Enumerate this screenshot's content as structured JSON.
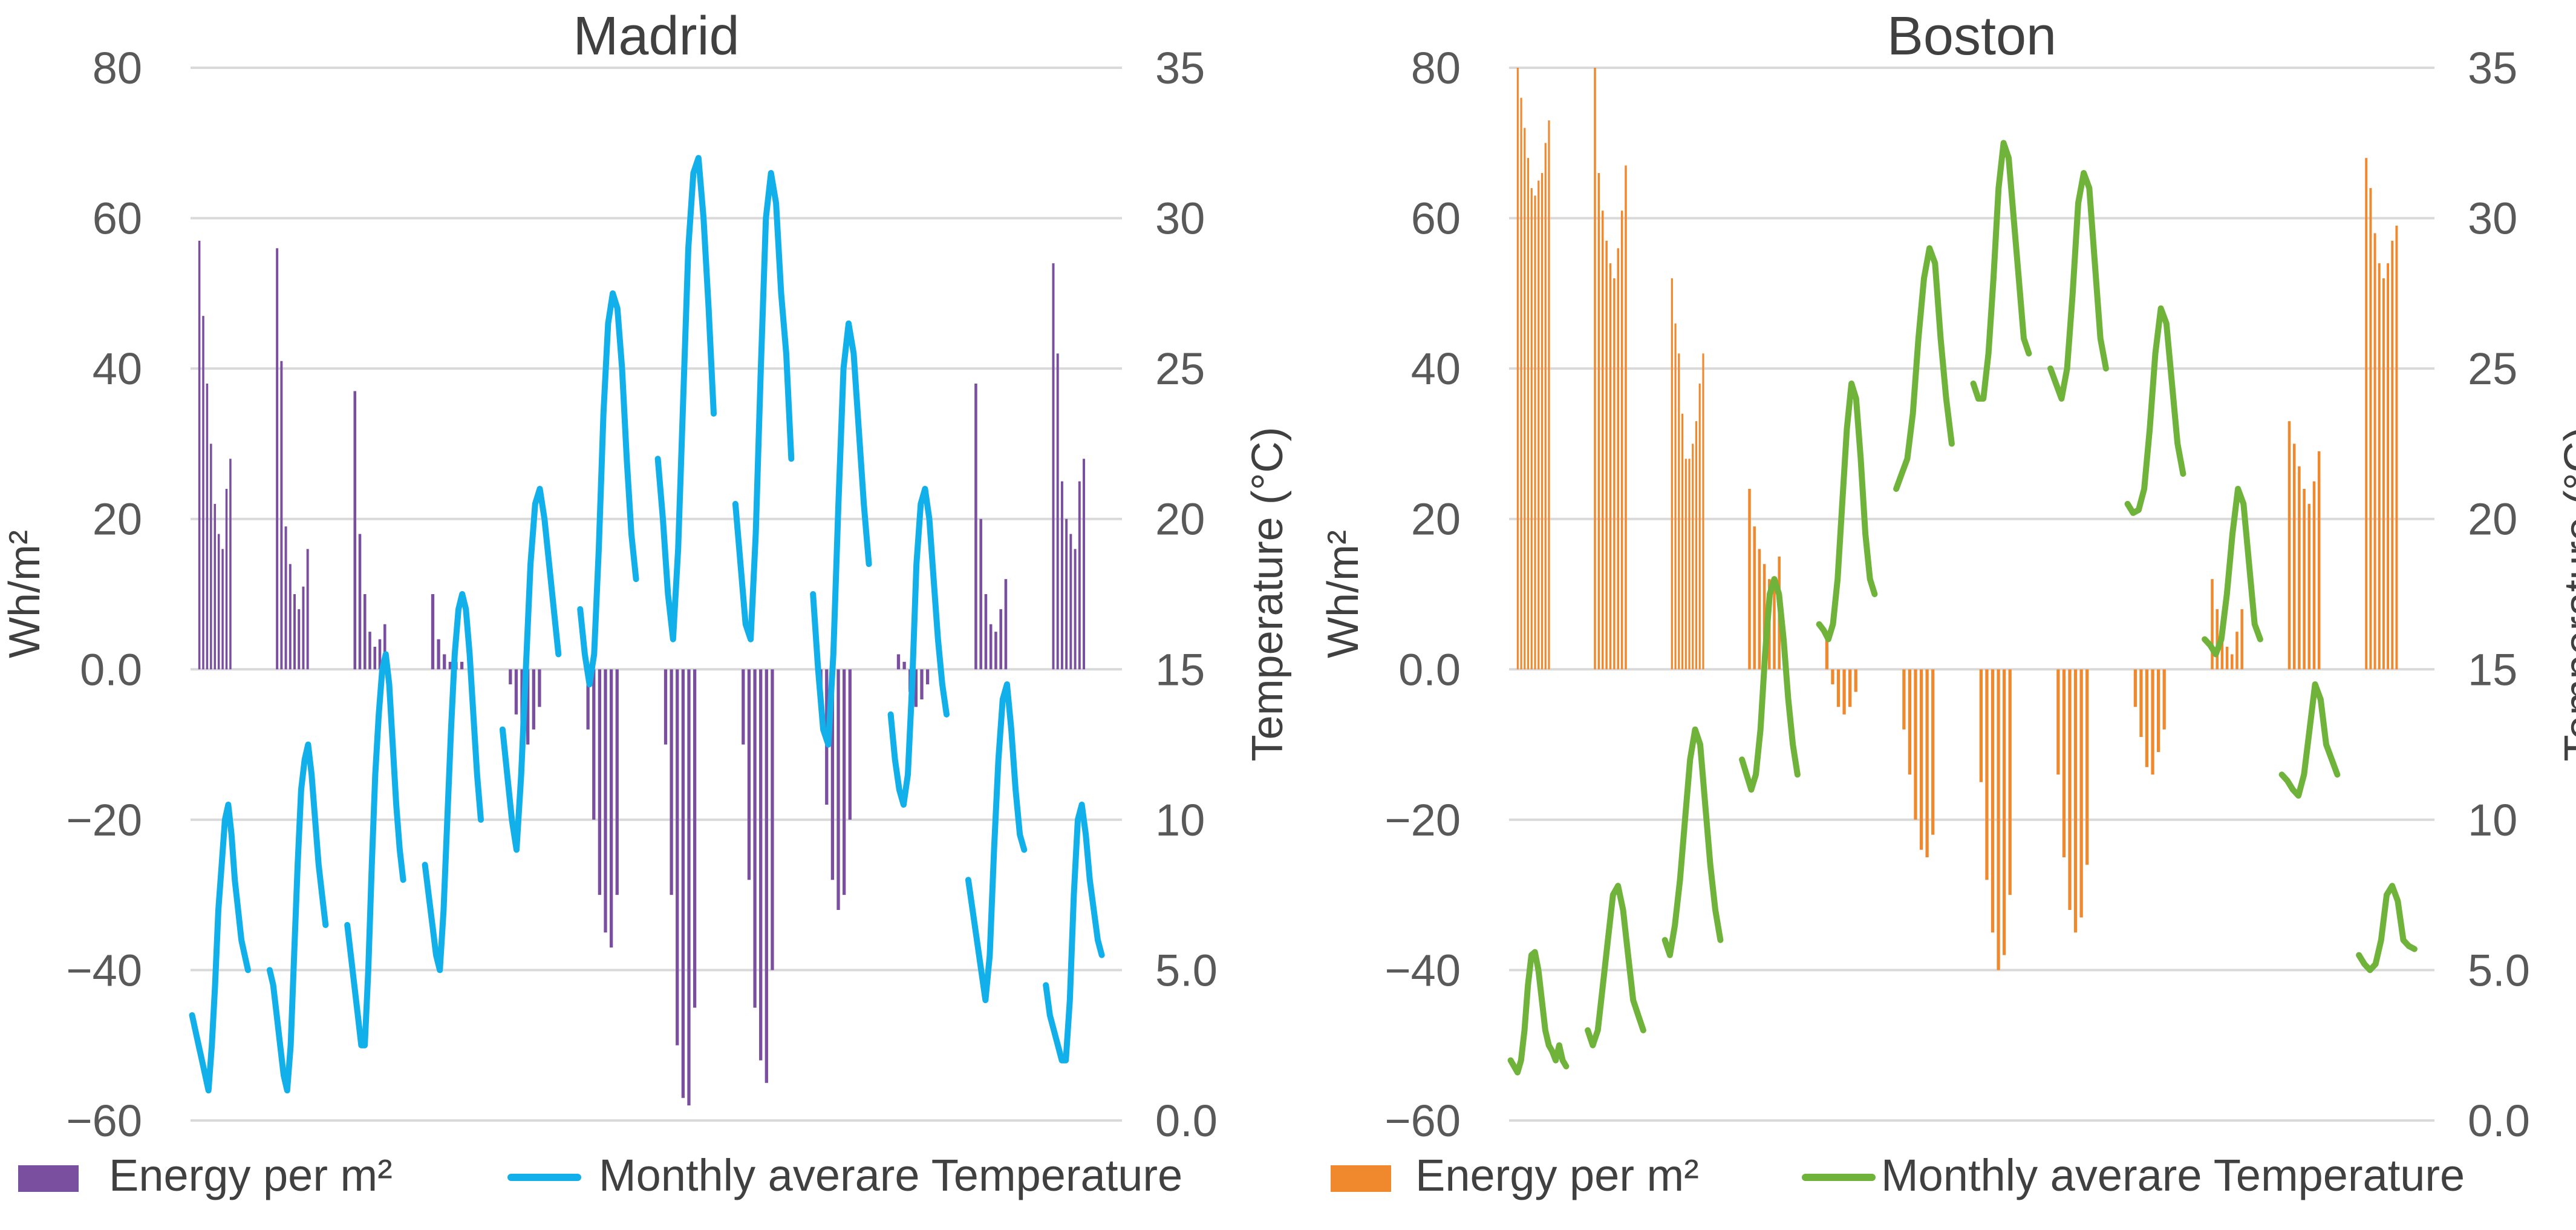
{
  "chart_data": [
    {
      "type": "bar+line",
      "title": "Madrid",
      "ylabel_left": "Wh/m²",
      "ylabel_right": "Temperature (°C)",
      "ylim_left": [
        -60,
        80
      ],
      "ylim_right": [
        0,
        35
      ],
      "yticks_left": [
        "80",
        "60",
        "40",
        "20",
        "0.0",
        "−20",
        "−40",
        "−60"
      ],
      "yticks_right": [
        "35",
        "30",
        "25",
        "20",
        "15",
        "10",
        "5.0",
        "0.0"
      ],
      "grid": true,
      "legend_position": "bottom",
      "bar_color": "#7b4fa0",
      "line_color": "#12b0ea",
      "series": [
        {
          "name": "Energy per m²",
          "type": "bar",
          "months": [
            [
              57,
              47,
              38,
              30,
              22,
              18,
              16,
              24,
              28
            ],
            [
              56,
              41,
              19,
              14,
              10,
              8,
              11,
              16
            ],
            [
              37,
              18,
              10,
              5,
              3,
              4,
              6
            ],
            [
              10,
              4,
              2,
              1,
              1,
              1
            ],
            [
              -2,
              -6,
              -9,
              -10,
              -8,
              -5
            ],
            [
              -8,
              -20,
              -30,
              -35,
              -37,
              -30
            ],
            [
              -10,
              -30,
              -50,
              -57,
              -58,
              -45
            ],
            [
              -10,
              -28,
              -45,
              -52,
              -55,
              -40
            ],
            [
              -6,
              -18,
              -28,
              -32,
              -30,
              -20
            ],
            [
              2,
              1,
              -3,
              -5,
              -4,
              -2
            ],
            [
              38,
              20,
              10,
              6,
              5,
              8,
              12
            ],
            [
              54,
              42,
              25,
              20,
              18,
              16,
              25,
              28
            ]
          ]
        },
        {
          "name": "Monthly averare Temperature",
          "type": "line",
          "months": [
            [
              3.5,
              3.0,
              2.5,
              2.0,
              1.5,
              1.0,
              2.5,
              4.5,
              7.0,
              8.5,
              10.0,
              10.5,
              9.5,
              8.0,
              7.0,
              6.0,
              5.5,
              5.0
            ],
            [
              5.0,
              4.5,
              3.5,
              2.5,
              1.5,
              1.0,
              2.5,
              5.5,
              8.5,
              11.0,
              12.0,
              12.5,
              11.5,
              10.0,
              8.5,
              7.5,
              6.5
            ],
            [
              6.5,
              5.5,
              4.5,
              3.5,
              2.5,
              2.5,
              5.0,
              8.5,
              11.5,
              13.5,
              15.0,
              15.5,
              14.5,
              12.5,
              10.5,
              9.0,
              8.0
            ],
            [
              8.5,
              7.5,
              6.5,
              5.5,
              5.0,
              7.0,
              10.0,
              13.0,
              15.5,
              17.0,
              17.5,
              17.0,
              15.5,
              13.5,
              11.5,
              10.0
            ],
            [
              13.0,
              11.5,
              10.0,
              9.0,
              11.5,
              15.0,
              18.5,
              20.5,
              21.0,
              20.0,
              18.5,
              17.0,
              15.5
            ],
            [
              17.0,
              15.5,
              14.5,
              15.5,
              19.0,
              23.5,
              26.5,
              27.5,
              27.0,
              25.0,
              22.0,
              19.5,
              18.0
            ],
            [
              22.0,
              20.0,
              17.5,
              16.0,
              19.0,
              24.0,
              29.0,
              31.5,
              32.0,
              30.0,
              27.0,
              23.5
            ],
            [
              20.5,
              18.5,
              16.5,
              16.0,
              19.5,
              25.0,
              30.0,
              31.5,
              30.5,
              27.5,
              25.5,
              22.0
            ],
            [
              17.5,
              15.0,
              13.0,
              12.5,
              15.5,
              20.5,
              25.0,
              26.5,
              25.5,
              23.0,
              20.5,
              18.5
            ],
            [
              13.5,
              12.0,
              11.0,
              10.5,
              11.5,
              14.5,
              18.5,
              20.5,
              21.0,
              20.0,
              18.0,
              16.0,
              14.5,
              13.5
            ],
            [
              8.0,
              7.0,
              6.0,
              5.0,
              4.0,
              5.5,
              9.0,
              12.0,
              14.0,
              14.5,
              13.0,
              11.0,
              9.5,
              9.0
            ],
            [
              4.5,
              3.5,
              3.0,
              2.5,
              2.0,
              2.0,
              4.0,
              7.5,
              10.0,
              10.5,
              9.5,
              8.0,
              7.0,
              6.0,
              5.5
            ]
          ]
        }
      ]
    },
    {
      "type": "bar+line",
      "title": "Boston",
      "ylabel_left": "Wh/m²",
      "ylabel_right": "Temperature (°C)",
      "ylim_left": [
        -60,
        80
      ],
      "ylim_right": [
        0,
        35
      ],
      "yticks_left": [
        "80",
        "60",
        "40",
        "20",
        "0.0",
        "−20",
        "−40",
        "−60"
      ],
      "yticks_right": [
        "35",
        "30",
        "25",
        "20",
        "15",
        "10",
        "5.0",
        "0.0"
      ],
      "grid": true,
      "legend_position": "bottom",
      "bar_color": "#f0892d",
      "line_color": "#6fb33a",
      "series": [
        {
          "name": "Energy per m²",
          "type": "bar",
          "months": [
            [
              80,
              76,
              72,
              68,
              64,
              63,
              65,
              66,
              70,
              73
            ],
            [
              80,
              66,
              61,
              57,
              54,
              52,
              56,
              61,
              67
            ],
            [
              52,
              46,
              42,
              34,
              28,
              28,
              30,
              33,
              38,
              42
            ],
            [
              24,
              19,
              16,
              14,
              12,
              11,
              15
            ],
            [
              4,
              -2,
              -5,
              -6,
              -5,
              -3
            ],
            [
              -8,
              -14,
              -20,
              -24,
              -25,
              -22
            ],
            [
              -15,
              -28,
              -35,
              -40,
              -38,
              -30
            ],
            [
              -14,
              -25,
              -32,
              -35,
              -33,
              -26
            ],
            [
              -5,
              -9,
              -13,
              -14,
              -11,
              -8
            ],
            [
              12,
              8,
              4,
              3,
              2,
              5,
              8
            ],
            [
              33,
              30,
              27,
              24,
              22,
              25,
              29
            ],
            [
              68,
              64,
              58,
              54,
              52,
              54,
              57,
              59
            ]
          ]
        },
        {
          "name": "Monthly averare Temperature",
          "type": "line",
          "months": [
            [
              2.0,
              1.8,
              1.6,
              2.0,
              3.0,
              4.5,
              5.5,
              5.6,
              5.0,
              4.0,
              3.0,
              2.5,
              2.3,
              2.0,
              2.5,
              2.0,
              1.8
            ],
            [
              3.0,
              2.5,
              3.0,
              4.5,
              6.0,
              7.5,
              7.8,
              7.0,
              5.5,
              4.0,
              3.5,
              3.0
            ],
            [
              6.0,
              5.5,
              6.5,
              8.0,
              10.0,
              12.0,
              13.0,
              12.5,
              10.5,
              8.5,
              7.0,
              6.0
            ],
            [
              12.0,
              11.5,
              11.0,
              11.5,
              13.0,
              15.5,
              17.5,
              18.0,
              17.5,
              16.0,
              14.0,
              12.5,
              11.5
            ],
            [
              16.5,
              16.3,
              16.0,
              16.5,
              18.0,
              20.5,
              23.0,
              24.5,
              24.0,
              22.0,
              19.5,
              18.0,
              17.5
            ],
            [
              21.0,
              21.5,
              22.0,
              23.5,
              26.0,
              28.0,
              29.0,
              28.5,
              26.0,
              24.0,
              22.5
            ],
            [
              24.5,
              24.0,
              24.0,
              25.5,
              28.0,
              31.0,
              32.5,
              32.0,
              30.0,
              28.0,
              26.0,
              25.5
            ],
            [
              25.0,
              24.5,
              24.0,
              25.0,
              27.5,
              30.5,
              31.5,
              31.0,
              28.5,
              26.0,
              25.0
            ],
            [
              20.5,
              20.2,
              20.3,
              21.0,
              23.0,
              25.5,
              27.0,
              26.5,
              24.5,
              22.5,
              21.5
            ],
            [
              16.0,
              15.8,
              15.5,
              16.0,
              17.5,
              19.5,
              21.0,
              20.5,
              18.5,
              16.5,
              16.0
            ],
            [
              11.5,
              11.3,
              11.0,
              10.8,
              11.5,
              13.0,
              14.5,
              14.0,
              12.5,
              12.0,
              11.5
            ],
            [
              5.5,
              5.2,
              5.0,
              5.2,
              6.0,
              7.5,
              7.8,
              7.3,
              6.0,
              5.8,
              5.7
            ]
          ]
        }
      ]
    }
  ]
}
